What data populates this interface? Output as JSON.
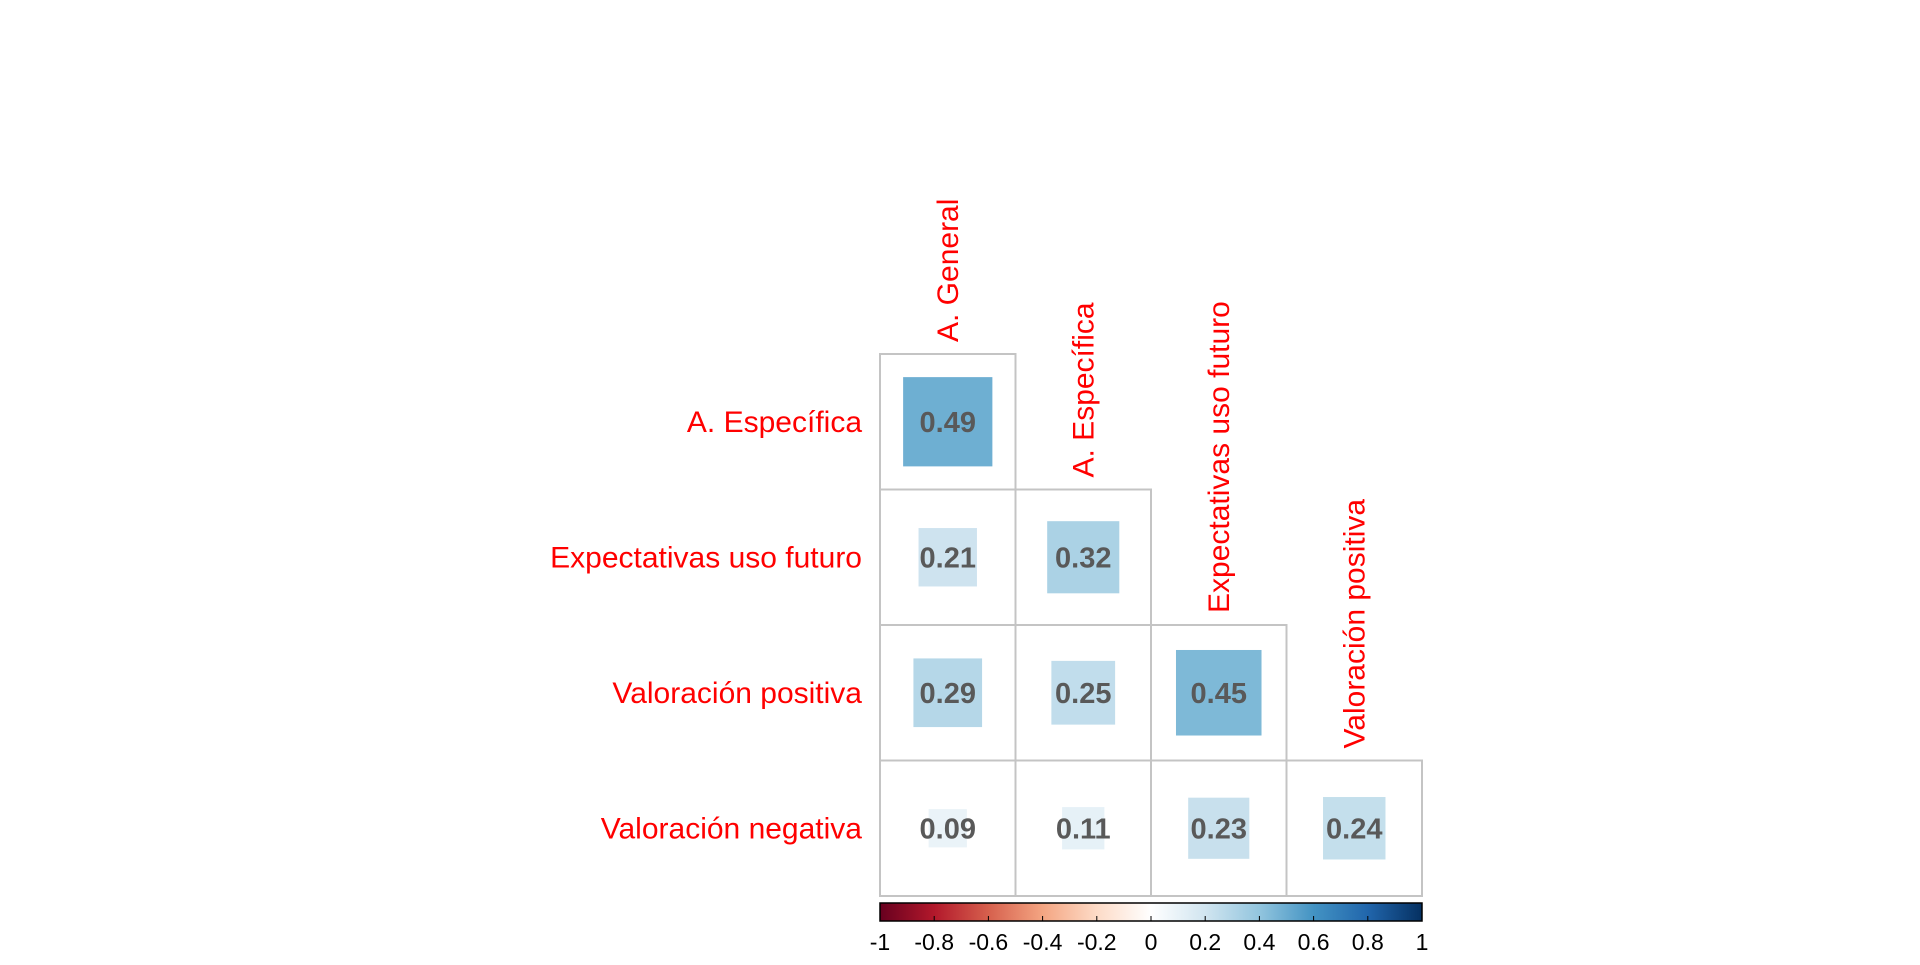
{
  "chart_data": {
    "type": "heatmap",
    "subtype": "correlation-matrix-lower",
    "method": "square",
    "row_labels": [
      "A. Específica",
      "Expectativas uso futuro",
      "Valoración positiva",
      "Valoración negativa"
    ],
    "col_labels": [
      "A. General",
      "A. Específica",
      "Expectativas uso futuro",
      "Valoración positiva"
    ],
    "values": [
      [
        0.49,
        null,
        null,
        null
      ],
      [
        0.21,
        0.32,
        null,
        null
      ],
      [
        0.29,
        0.25,
        0.45,
        null
      ],
      [
        0.09,
        0.11,
        0.23,
        0.24
      ]
    ],
    "value_labels": [
      [
        "0.49",
        "",
        "",
        ""
      ],
      [
        "0.21",
        "0.32",
        "",
        ""
      ],
      [
        "0.29",
        "0.25",
        "0.45",
        ""
      ],
      [
        "0.09",
        "0.11",
        "0.23",
        "0.24"
      ]
    ],
    "colorbar": {
      "range": [
        -1,
        1
      ],
      "tick_values": [
        -1,
        -0.8,
        -0.6,
        -0.4,
        -0.2,
        0,
        0.2,
        0.4,
        0.6,
        0.8,
        1
      ],
      "tick_labels": [
        "-1",
        "-0.8",
        "-0.6",
        "-0.4",
        "-0.2",
        "0",
        "0.2",
        "0.4",
        "0.6",
        "0.8",
        "1"
      ],
      "placement": "bottom"
    },
    "label_color": "#ff0000",
    "value_text_color": "#595959",
    "grid_color": "#c4c4c4",
    "colormap": [
      "#67001f",
      "#b2182b",
      "#d6604d",
      "#f4a582",
      "#fddbc7",
      "#ffffff",
      "#d1e5f0",
      "#92c5de",
      "#4393c3",
      "#2166ac",
      "#053061"
    ]
  }
}
